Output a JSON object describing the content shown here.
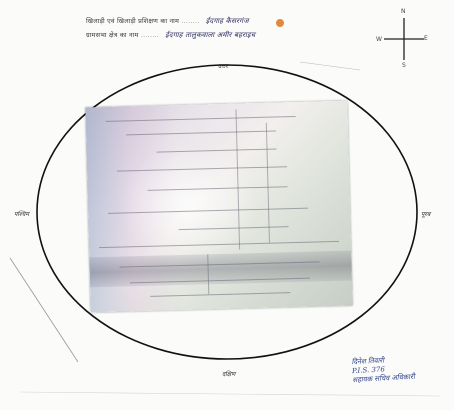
{
  "header": {
    "line1_label": "खिलाड़ी एवं खिलाड़ी प्रशिक्षण का नाम",
    "line1_value": "ईदगाह कैसरगंज",
    "line2_label": "ग्रामसभा क्षेत्र का नाम",
    "line2_value": "ईदगाह तालुकवाला अमीर बहराइच",
    "dots": "........"
  },
  "compass": {
    "north": "N",
    "south": "S",
    "east": "E",
    "west": "W"
  },
  "directions": {
    "top": "उत्तर",
    "bottom": "दक्षिण",
    "left": "पश्चिम",
    "right": "पूरब"
  },
  "signature": {
    "line1": "दिनेश तिवारी",
    "line2": "P.I.S. 376",
    "line3": "सहायक सचिव अधिकारी"
  },
  "colors": {
    "ink": "#2e3f8a",
    "stamp": "#e07b2a"
  }
}
